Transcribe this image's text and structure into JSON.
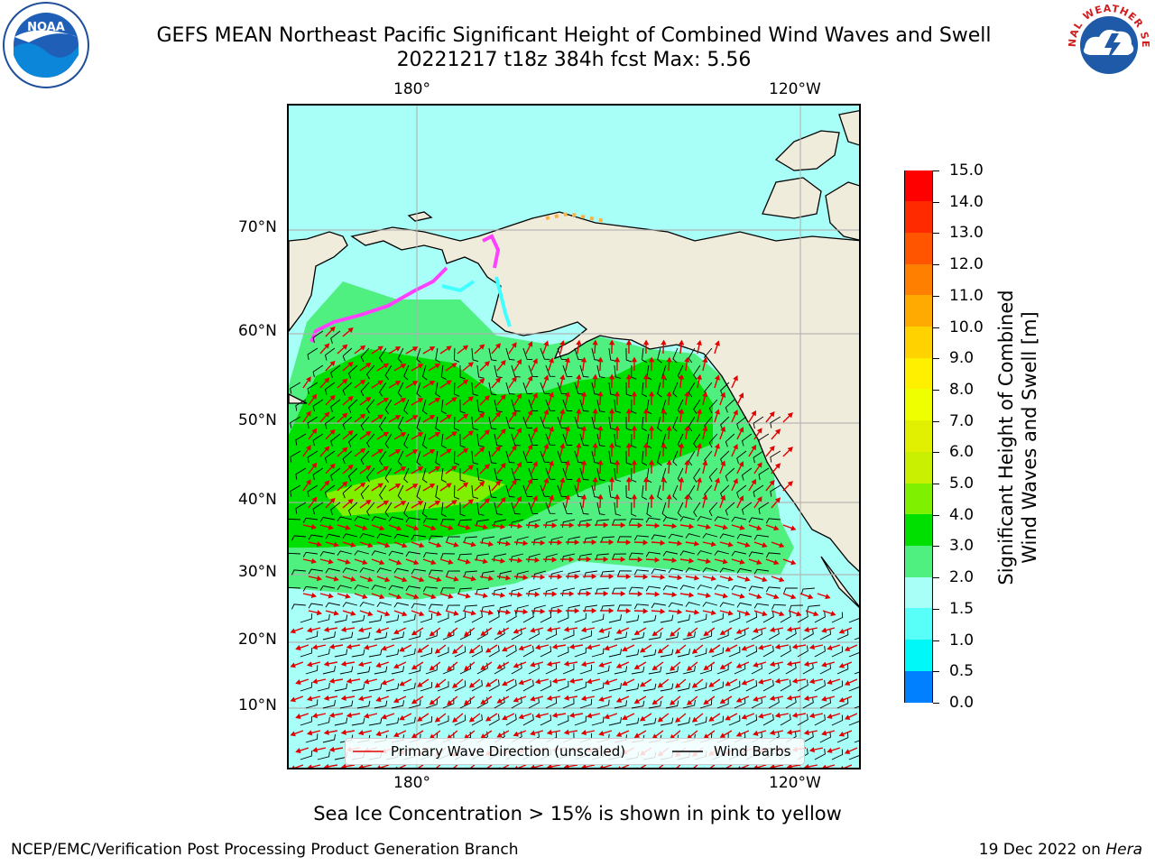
{
  "title": {
    "line1": "GEFS MEAN Northeast Pacific Significant Height of Combined Wind Waves and Swell",
    "line2": "20221217 t18z 384h fcst   Max: 5.56"
  },
  "logos": {
    "left": "NOAA",
    "right_text": "NATIONAL WEATHER SERVICE"
  },
  "map": {
    "lon_labels": [
      "180°",
      "120°W"
    ],
    "lat_labels": [
      "70°N",
      "60°N",
      "50°N",
      "40°N",
      "30°N",
      "20°N",
      "10°N"
    ],
    "legend": {
      "wave_label": "Primary Wave Direction (unscaled)",
      "barb_label": "Wind Barbs"
    }
  },
  "colorbar": {
    "title": "Significant Height of Combined Wind Waves and Swell [m]",
    "title_line1": "Significant Height of Combined",
    "title_line2": "Wind Waves and Swell [m]",
    "ticks": [
      "15.0",
      "14.0",
      "13.0",
      "12.0",
      "11.0",
      "10.0",
      "9.0",
      "8.0",
      "7.0",
      "6.0",
      "5.0",
      "4.0",
      "3.0",
      "2.0",
      "1.5",
      "1.0",
      "0.5",
      "0.0"
    ],
    "colors": [
      "#ff0000",
      "#ff2a00",
      "#ff5500",
      "#ff8000",
      "#ffaa00",
      "#ffd200",
      "#fff000",
      "#f0ff00",
      "#e0f000",
      "#c8f000",
      "#7ff000",
      "#00e000",
      "#50f080",
      "#a8fff8",
      "#58fff8",
      "#00f8f8",
      "#0080ff",
      "#0000ff"
    ]
  },
  "footer": {
    "note": "Sea Ice Concentration > 15% is shown in pink to yellow",
    "credit": "NCEP/EMC/Verification Post Processing Product Generation Branch",
    "date": "19 Dec 2022 on",
    "host": "Hera"
  }
}
